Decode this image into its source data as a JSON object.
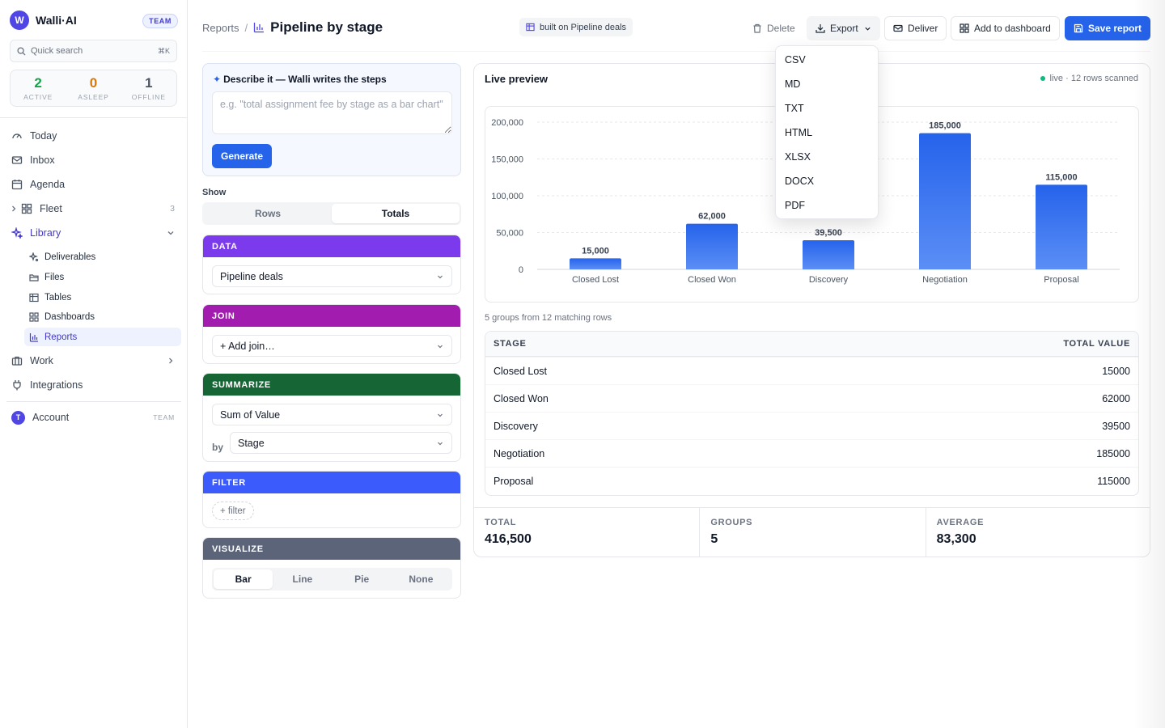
{
  "sidebar": {
    "brand": {
      "logo_letter": "W",
      "name": "Walli·AI",
      "badge": "TEAM"
    },
    "quick_search": {
      "placeholder": "Quick search",
      "shortcut": "⌘K"
    },
    "stats": [
      {
        "value": "2",
        "label": "ACTIVE",
        "color": "#16a34a"
      },
      {
        "value": "0",
        "label": "ASLEEP",
        "color": "#d97706"
      },
      {
        "value": "1",
        "label": "OFFLINE",
        "color": "#4b5563"
      }
    ],
    "nav": {
      "today": "Today",
      "inbox": "Inbox",
      "agenda": "Agenda",
      "fleet": "Fleet",
      "fleet_count": "3",
      "library": "Library",
      "library_sub": {
        "deliverables": "Deliverables",
        "files": "Files",
        "tables": "Tables",
        "dashboards": "Dashboards",
        "reports": "Reports"
      },
      "work": "Work",
      "integrations": "Integrations"
    },
    "account": {
      "avatar_letter": "T",
      "label": "Account",
      "badge": "TEAM"
    }
  },
  "header": {
    "breadcrumb_root": "Reports",
    "breadcrumb_sep": "/",
    "title": "Pipeline by stage",
    "built_on": "built on Pipeline deals",
    "delete_label": "Delete",
    "export_label": "Export",
    "deliver_label": "Deliver",
    "add_dashboard_label": "Add to dashboard",
    "save_label": "Save report"
  },
  "export_menu": [
    "CSV",
    "MD",
    "TXT",
    "HTML",
    "XLSX",
    "DOCX",
    "PDF"
  ],
  "builder": {
    "describe_title": "Describe it — Walli writes the steps",
    "describe_placeholder": "e.g. \"total assignment fee by stage as a bar chart\"",
    "generate_label": "Generate",
    "show_label": "Show",
    "show_options": [
      "Rows",
      "Totals"
    ],
    "show_selected": "Totals",
    "data": {
      "header": "DATA",
      "source": "Pipeline deals",
      "color": "#7c3aed"
    },
    "join": {
      "header": "JOIN",
      "value": "+ Add join…",
      "color": "#a21caf"
    },
    "summarize": {
      "header": "SUMMARIZE",
      "metric": "Sum of Value",
      "by_label": "by",
      "group_by": "Stage",
      "color": "#166534"
    },
    "filter": {
      "header": "FILTER",
      "chip": "+ filter",
      "color": "#3b5bfd"
    },
    "visualize": {
      "header": "VISUALIZE",
      "options": [
        "Bar",
        "Line",
        "Pie",
        "None"
      ],
      "selected": "Bar",
      "color": "#5b6478"
    }
  },
  "preview": {
    "title": "Live preview",
    "status": "live · 12 rows scanned",
    "summary": "5 groups from 12 matching rows",
    "table": {
      "headers": [
        "STAGE",
        "TOTAL VALUE"
      ],
      "rows": [
        [
          "Closed Lost",
          "15000"
        ],
        [
          "Closed Won",
          "62000"
        ],
        [
          "Discovery",
          "39500"
        ],
        [
          "Negotiation",
          "185000"
        ],
        [
          "Proposal",
          "115000"
        ]
      ]
    },
    "totals": [
      {
        "label": "TOTAL",
        "value": "416,500"
      },
      {
        "label": "GROUPS",
        "value": "5"
      },
      {
        "label": "AVERAGE",
        "value": "83,300"
      }
    ]
  },
  "chart_data": {
    "type": "bar",
    "categories": [
      "Closed Lost",
      "Closed Won",
      "Discovery",
      "Negotiation",
      "Proposal"
    ],
    "values": [
      15000,
      62000,
      39500,
      185000,
      115000
    ],
    "value_labels": [
      "15,000",
      "62,000",
      "39,500",
      "185,000",
      "115,000"
    ],
    "y_ticks": [
      0,
      50000,
      100000,
      150000,
      200000
    ],
    "y_tick_labels": [
      "0",
      "50,000",
      "100,000",
      "150,000",
      "200,000"
    ],
    "ylim": [
      0,
      200000
    ],
    "title": "",
    "xlabel": "",
    "ylabel": "",
    "grid": true,
    "bar_color": "#2563eb"
  }
}
